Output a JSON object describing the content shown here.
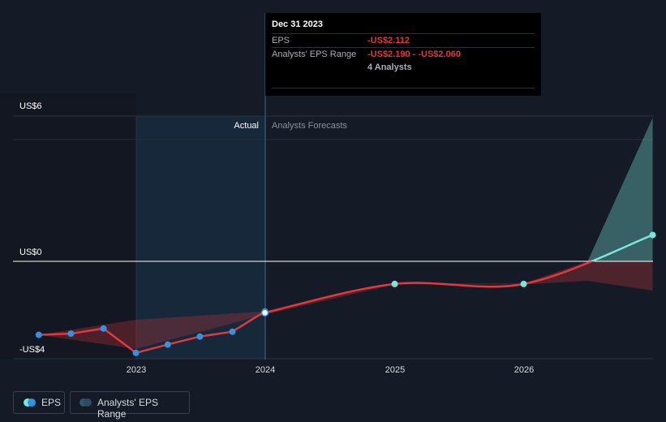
{
  "tooltip": {
    "date": "Dec 31 2023",
    "eps_label": "EPS",
    "eps_value": "-US$2.112",
    "range_label": "Analysts' EPS Range",
    "range_value": "-US$2.190 - -US$2.060",
    "analysts": "4 Analysts"
  },
  "legend": {
    "eps_label": "EPS",
    "range_label": "Analysts' EPS Range"
  },
  "colors": {
    "background": "#151b26",
    "actual_shade": "#16283a",
    "eps_line": "#e0393e",
    "positive_line": "#79e6dc",
    "dot_actual": "#2f93e6",
    "dot_forecast": "#79e6dc"
  },
  "chart_data": {
    "type": "line",
    "title": "",
    "xlabel": "",
    "ylabel": "",
    "ylim": [
      -4,
      6
    ],
    "y_ticks": [
      "US$6",
      "US$0",
      "-US$4"
    ],
    "x_ticks": [
      "2023",
      "2024",
      "2025",
      "2026"
    ],
    "region_labels": {
      "actual": "Actual",
      "forecast": "Analysts Forecasts"
    },
    "series": [
      {
        "name": "EPS",
        "kind": "actual",
        "points": [
          {
            "x": "2022-03-31",
            "y": -3.02
          },
          {
            "x": "2022-06-30",
            "y": -2.97
          },
          {
            "x": "2022-09-30",
            "y": -2.76
          },
          {
            "x": "2022-12-31",
            "y": -3.76
          },
          {
            "x": "2023-03-31",
            "y": -3.42
          },
          {
            "x": "2023-06-30",
            "y": -3.09
          },
          {
            "x": "2023-09-30",
            "y": -2.89
          },
          {
            "x": "2023-12-31",
            "y": -2.06
          }
        ]
      },
      {
        "name": "EPS",
        "kind": "forecast",
        "points": [
          {
            "x": "2023-12-31",
            "y": -2.11
          },
          {
            "x": "2024-12-31",
            "y": -0.93
          },
          {
            "x": "2025-12-31",
            "y": -0.93
          },
          {
            "x": "2026-12-31",
            "y": 1.08
          }
        ]
      },
      {
        "name": "Analysts' EPS Range",
        "kind": "range",
        "points": [
          {
            "x": "2022-03-31",
            "low": -3.02,
            "high": -3.02
          },
          {
            "x": "2022-12-31",
            "low": -3.6,
            "high": -2.4
          },
          {
            "x": "2023-12-31",
            "low": -2.19,
            "high": -2.06
          },
          {
            "x": "2024-12-31",
            "low": -0.95,
            "high": -0.91
          },
          {
            "x": "2025-12-31",
            "low": -0.95,
            "high": -0.91
          },
          {
            "x": "2026-06-30",
            "low": -0.8,
            "high": 0.0
          },
          {
            "x": "2026-12-31",
            "low": -1.2,
            "high": 5.9
          }
        ]
      }
    ]
  }
}
